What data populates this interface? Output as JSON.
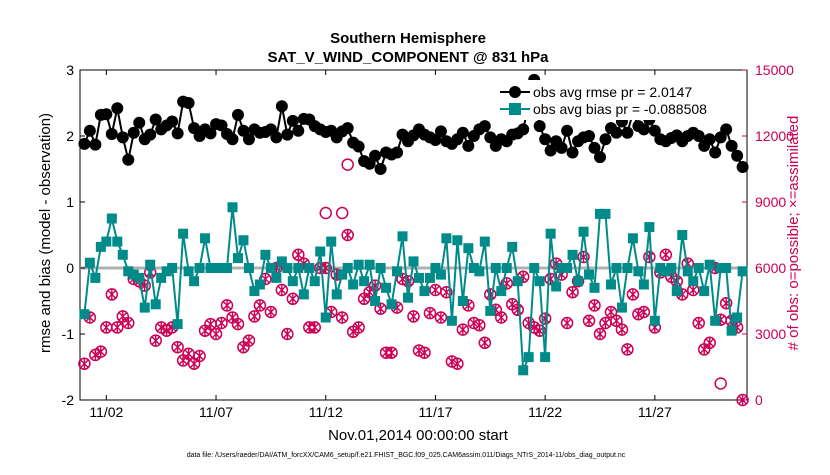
{
  "chart_data": {
    "type": "line",
    "title": "Southern Hemisphere",
    "subtitle": "SAT_V_WIND_COMPONENT @ 831 hPa",
    "xlabel": "Nov.01,2014 00:00:00 start",
    "ylabel_left": "rmse and bias (model - observation)",
    "ylabel_right": "# of obs: o=possible; ×=assimilated",
    "footnote": "data file: /Users/raeder/DAI/ATM_forcXX/CAM6_setup/f.e21.FHIST_BGC.f09_025.CAM6assim.011/Diags_NTrS_2014-11/obs_diag_output.nc",
    "xlim": [
      0.8,
      31.2
    ],
    "ylim_left": [
      -2,
      3
    ],
    "ylim_right": [
      0,
      15000
    ],
    "x_ticks": [
      2,
      7,
      12,
      17,
      22,
      27
    ],
    "x_tick_labels": [
      "11/02",
      "11/07",
      "11/12",
      "11/17",
      "11/22",
      "11/27"
    ],
    "y_left_ticks": [
      -2,
      -1,
      0,
      1,
      2,
      3
    ],
    "y_left_tick_labels": [
      "-2",
      "-1",
      "0",
      "1",
      "2",
      "3"
    ],
    "y_right_ticks": [
      0,
      3000,
      6000,
      9000,
      12000,
      15000
    ],
    "y_right_tick_labels": [
      "0",
      "3000",
      "6000",
      "9000",
      "12000",
      "15000"
    ],
    "zero_line": 0,
    "legend_position": "top-right",
    "series": [
      {
        "name": "obs avg rmse pr = 2.0147",
        "axis": "left",
        "color": "#000000",
        "marker": "hexagram",
        "x": [
          1.0,
          1.25,
          1.5,
          1.75,
          2.0,
          2.25,
          2.5,
          2.75,
          3.0,
          3.25,
          3.5,
          3.75,
          4.0,
          4.25,
          4.5,
          4.75,
          5.0,
          5.25,
          5.5,
          5.75,
          6.0,
          6.25,
          6.5,
          6.75,
          7.0,
          7.25,
          7.5,
          7.75,
          8.0,
          8.25,
          8.5,
          8.75,
          9.0,
          9.25,
          9.5,
          9.75,
          10.0,
          10.25,
          10.5,
          10.75,
          11.0,
          11.25,
          11.5,
          11.75,
          12.0,
          12.25,
          12.5,
          12.75,
          13.0,
          13.25,
          13.5,
          13.75,
          14.0,
          14.25,
          14.5,
          14.75,
          15.0,
          15.25,
          15.5,
          15.75,
          16.0,
          16.25,
          16.5,
          16.75,
          17.0,
          17.25,
          17.5,
          17.75,
          18.0,
          18.25,
          18.5,
          18.75,
          19.0,
          19.25,
          19.5,
          19.75,
          20.0,
          20.25,
          20.5,
          20.75,
          21.0,
          21.25,
          21.5,
          21.75,
          22.0,
          22.25,
          22.5,
          22.75,
          23.0,
          23.25,
          23.5,
          23.75,
          24.0,
          24.25,
          24.5,
          24.75,
          25.0,
          25.25,
          25.5,
          25.75,
          26.0,
          26.25,
          26.5,
          26.75,
          27.0,
          27.25,
          27.5,
          27.75,
          28.0,
          28.25,
          28.5,
          28.75,
          29.0,
          29.25,
          29.5,
          29.75,
          30.0,
          30.25,
          30.5,
          30.75,
          31.0
        ],
        "values": [
          1.88,
          2.08,
          1.87,
          2.32,
          2.33,
          2.03,
          2.42,
          1.98,
          1.64,
          2.05,
          2.2,
          1.95,
          2.02,
          2.25,
          2.1,
          2.16,
          2.22,
          2.04,
          2.52,
          2.5,
          2.12,
          2.0,
          2.1,
          2.04,
          2.18,
          2.16,
          2.03,
          1.95,
          2.32,
          2.08,
          1.95,
          2.1,
          2.05,
          2.06,
          2.1,
          1.98,
          2.45,
          2.02,
          2.23,
          2.08,
          2.26,
          2.25,
          2.15,
          2.1,
          2.06,
          2.08,
          1.98,
          2.07,
          2.12,
          1.9,
          1.84,
          1.62,
          1.58,
          1.7,
          1.5,
          1.75,
          1.72,
          1.75,
          2.02,
          1.92,
          2.01,
          2.1,
          2.02,
          1.98,
          1.94,
          2.07,
          1.92,
          1.88,
          1.95,
          2.05,
          1.85,
          2.0,
          2.1,
          2.15,
          1.98,
          1.85,
          1.95,
          1.92,
          2.02,
          2.04,
          2.1,
          2.48,
          2.85,
          2.15,
          1.95,
          1.78,
          1.92,
          1.82,
          2.08,
          1.75,
          1.92,
          1.98,
          2.0,
          1.82,
          1.68,
          1.95,
          2.12,
          2.05,
          2.22,
          2.05,
          2.35,
          2.15,
          2.1,
          2.25,
          2.08,
          1.95,
          1.92,
          1.97,
          2.01,
          1.92,
          2.0,
          2.05,
          2.0,
          1.85,
          1.95,
          1.75,
          1.98,
          2.1,
          1.85,
          1.7,
          1.53
        ]
      },
      {
        "name": "obs avg bias pr = -0.088508",
        "axis": "left",
        "color": "#008b8b",
        "marker": "square",
        "x": [
          1.0,
          1.25,
          1.5,
          1.75,
          2.0,
          2.25,
          2.5,
          2.75,
          3.0,
          3.25,
          3.5,
          3.75,
          4.0,
          4.25,
          4.5,
          4.75,
          5.0,
          5.25,
          5.5,
          5.75,
          6.0,
          6.25,
          6.5,
          6.75,
          7.0,
          7.25,
          7.5,
          7.75,
          8.0,
          8.25,
          8.5,
          8.75,
          9.0,
          9.25,
          9.5,
          9.75,
          10.0,
          10.25,
          10.5,
          10.75,
          11.0,
          11.25,
          11.5,
          11.75,
          12.0,
          12.25,
          12.5,
          12.75,
          13.0,
          13.25,
          13.5,
          13.75,
          14.0,
          14.25,
          14.5,
          14.75,
          15.0,
          15.25,
          15.5,
          15.75,
          16.0,
          16.25,
          16.5,
          16.75,
          17.0,
          17.25,
          17.5,
          17.75,
          18.0,
          18.25,
          18.5,
          18.75,
          19.0,
          19.25,
          19.5,
          19.75,
          20.0,
          20.25,
          20.5,
          20.75,
          21.0,
          21.25,
          21.5,
          21.75,
          22.0,
          22.25,
          22.5,
          22.75,
          23.0,
          23.25,
          23.5,
          23.75,
          24.0,
          24.25,
          24.5,
          24.75,
          25.0,
          25.25,
          25.5,
          25.75,
          26.0,
          26.25,
          26.5,
          26.75,
          27.0,
          27.25,
          27.5,
          27.75,
          28.0,
          28.25,
          28.5,
          28.75,
          29.0,
          29.25,
          29.5,
          29.75,
          30.0,
          30.25,
          30.5,
          30.75,
          31.0
        ],
        "values": [
          -0.7,
          0.08,
          -0.15,
          0.32,
          0.4,
          0.75,
          0.4,
          0.2,
          -0.05,
          -0.1,
          -0.15,
          -0.6,
          0.05,
          -0.55,
          -0.15,
          -0.05,
          0.0,
          -0.85,
          0.52,
          -0.05,
          -0.2,
          0.0,
          0.45,
          0.0,
          0.0,
          0.0,
          0.0,
          0.92,
          0.15,
          0.42,
          0.0,
          -0.35,
          -0.25,
          0.2,
          0.0,
          -0.15,
          0.1,
          0.0,
          -0.2,
          0.0,
          -0.4,
          0.0,
          -0.2,
          0.25,
          -0.75,
          0.4,
          -0.4,
          -0.1,
          0.0,
          -0.25,
          0.05,
          -0.2,
          0.05,
          -0.5,
          0.0,
          -0.3,
          -0.55,
          -0.05,
          0.48,
          -0.45,
          0.1,
          -0.15,
          -0.35,
          -0.15,
          0.0,
          -0.1,
          0.45,
          -0.8,
          0.42,
          -0.5,
          0.3,
          0.0,
          -0.05,
          0.4,
          -0.65,
          0.0,
          -0.35,
          0.0,
          0.32,
          -0.2,
          -1.55,
          -1.35,
          0.0,
          -0.2,
          -1.35,
          0.52,
          -0.28,
          0.0,
          0.0,
          0.2,
          -0.2,
          0.55,
          -0.1,
          -0.3,
          0.82,
          0.82,
          -0.25,
          0.0,
          -0.6,
          0.0,
          0.45,
          -0.05,
          -0.25,
          0.62,
          -0.8,
          0.0,
          -0.05,
          0.0,
          -0.35,
          0.5,
          -0.05,
          -0.2,
          0.0,
          -0.35,
          0.05,
          -0.8,
          0.0,
          0.0,
          -0.95,
          -0.75,
          -0.05
        ]
      },
      {
        "name": "# of obs possible",
        "axis": "right",
        "color": "#cc0055",
        "marker": "circle",
        "x": [
          1.0,
          1.25,
          1.5,
          1.75,
          2.0,
          2.25,
          2.5,
          2.75,
          3.0,
          3.25,
          3.5,
          3.75,
          4.0,
          4.25,
          4.5,
          4.75,
          5.0,
          5.25,
          5.5,
          5.75,
          6.0,
          6.25,
          6.5,
          6.75,
          7.0,
          7.25,
          7.5,
          7.75,
          8.0,
          8.25,
          8.5,
          8.75,
          9.0,
          9.25,
          9.5,
          9.75,
          10.0,
          10.25,
          10.5,
          10.75,
          11.0,
          11.25,
          11.5,
          11.75,
          12.0,
          12.25,
          12.5,
          12.75,
          13.0,
          13.25,
          13.5,
          13.75,
          14.0,
          14.25,
          14.5,
          14.75,
          15.0,
          15.25,
          15.5,
          15.75,
          16.0,
          16.25,
          16.5,
          16.75,
          17.0,
          17.25,
          17.5,
          17.75,
          18.0,
          18.25,
          18.5,
          18.75,
          19.0,
          19.25,
          19.5,
          19.75,
          20.0,
          20.25,
          20.5,
          20.75,
          21.0,
          21.25,
          21.5,
          21.75,
          22.0,
          22.25,
          22.5,
          22.75,
          23.0,
          23.25,
          23.5,
          23.75,
          24.0,
          24.25,
          24.5,
          24.75,
          25.0,
          25.25,
          25.5,
          25.75,
          26.0,
          26.25,
          26.5,
          26.75,
          27.0,
          27.25,
          27.5,
          27.75,
          28.0,
          28.25,
          28.5,
          28.75,
          29.0,
          29.25,
          29.5,
          29.75,
          30.0,
          30.25,
          30.5,
          30.75,
          31.0
        ],
        "values": [
          1650,
          3750,
          2050,
          2200,
          3300,
          4800,
          3300,
          3800,
          3500,
          5500,
          5400,
          5200,
          5800,
          2700,
          3300,
          3150,
          3300,
          2400,
          1800,
          2100,
          1650,
          2000,
          3150,
          3450,
          3000,
          3500,
          4300,
          3750,
          3450,
          2400,
          2700,
          3800,
          4300,
          5500,
          4000,
          6000,
          5000,
          3000,
          4600,
          6600,
          6200,
          3300,
          3300,
          6000,
          6000,
          4000,
          5700,
          3750,
          7500,
          3100,
          3300,
          4600,
          4900,
          5200,
          4150,
          2150,
          2150,
          4200,
          5500,
          5400,
          3800,
          2250,
          2150,
          3950,
          5000,
          3750,
          4900,
          1750,
          1650,
          3200,
          4300,
          3500,
          3400,
          2600,
          4800,
          4100,
          3750,
          5300,
          4350,
          4100,
          5600,
          3500,
          3300,
          3150,
          3700,
          5500,
          6200,
          5700,
          3500,
          4900,
          5400,
          6500,
          3600,
          4300,
          3000,
          3500,
          4000,
          3600,
          3200,
          2300,
          4800,
          3900,
          4000,
          6500,
          3300,
          5800,
          6600,
          5600,
          5400,
          4800,
          6200,
          5000,
          3500,
          2300,
          2600,
          6000,
          3650,
          4400,
          3600,
          3300,
          0
        ]
      },
      {
        "name": "# of obs assimilated",
        "axis": "right",
        "color": "#cc0055",
        "marker": "cross",
        "x": [
          1.0,
          1.25,
          1.5,
          1.75,
          2.0,
          2.25,
          2.5,
          2.75,
          3.0,
          3.25,
          3.5,
          3.75,
          4.0,
          4.25,
          4.5,
          4.75,
          5.0,
          5.25,
          5.5,
          5.75,
          6.0,
          6.25,
          6.5,
          6.75,
          7.0,
          7.25,
          7.5,
          7.75,
          8.0,
          8.25,
          8.5,
          8.75,
          9.0,
          9.25,
          9.5,
          9.75,
          10.0,
          10.25,
          10.5,
          10.75,
          11.0,
          11.25,
          11.5,
          11.75,
          12.0,
          12.25,
          12.5,
          12.75,
          13.0,
          13.25,
          13.5,
          13.75,
          14.0,
          14.25,
          14.5,
          14.75,
          15.0,
          15.25,
          15.5,
          15.75,
          16.0,
          16.25,
          16.5,
          16.75,
          17.0,
          17.25,
          17.5,
          17.75,
          18.0,
          18.25,
          18.5,
          18.75,
          19.0,
          19.25,
          19.5,
          19.75,
          20.0,
          20.25,
          20.5,
          20.75,
          21.0,
          21.25,
          21.5,
          21.75,
          22.0,
          22.25,
          22.5,
          22.75,
          23.0,
          23.25,
          23.5,
          23.75,
          24.0,
          24.25,
          24.5,
          24.75,
          25.0,
          25.25,
          25.5,
          25.75,
          26.0,
          26.25,
          26.5,
          26.75,
          27.0,
          27.25,
          27.5,
          27.75,
          28.0,
          28.25,
          28.5,
          28.75,
          29.0,
          29.25,
          29.5,
          29.75,
          30.0,
          30.25,
          30.5,
          30.75,
          31.0
        ],
        "values": [
          1650,
          3750,
          2050,
          2200,
          3300,
          4800,
          3300,
          3800,
          3500,
          5500,
          5400,
          5200,
          5800,
          2700,
          3300,
          3150,
          3300,
          2400,
          1800,
          2100,
          1650,
          2000,
          3150,
          3450,
          3000,
          3500,
          4300,
          3750,
          3450,
          2400,
          2700,
          3800,
          4300,
          5500,
          4000,
          6000,
          5000,
          3000,
          4600,
          6600,
          6200,
          3300,
          3300,
          6000,
          6000,
          4000,
          5700,
          3750,
          7500,
          3100,
          3300,
          4600,
          4900,
          5200,
          4150,
          2150,
          2150,
          4200,
          5500,
          5400,
          3800,
          2250,
          2150,
          3950,
          5000,
          3750,
          4900,
          1750,
          1650,
          3200,
          4300,
          3500,
          3400,
          2600,
          4800,
          4100,
          3750,
          5300,
          4350,
          4100,
          5600,
          3500,
          3300,
          3150,
          3700,
          5500,
          6200,
          5700,
          3500,
          4900,
          5400,
          6500,
          3600,
          4300,
          3000,
          3500,
          4000,
          3600,
          3200,
          2300,
          4800,
          3900,
          4000,
          6500,
          3300,
          5800,
          6600,
          5600,
          5400,
          4800,
          6200,
          5000,
          3500,
          2300,
          2600,
          6000,
          3650,
          4400,
          3600,
          3300,
          0
        ]
      }
    ],
    "extra_points": [
      {
        "series": "# of obs possible",
        "x": 13.0,
        "value": 10700
      },
      {
        "series": "# of obs possible",
        "x": 12.0,
        "value": 8500
      },
      {
        "series": "# of obs possible",
        "x": 12.75,
        "value": 8500
      },
      {
        "series": "# of obs possible",
        "x": 30.0,
        "value": 750
      }
    ]
  }
}
